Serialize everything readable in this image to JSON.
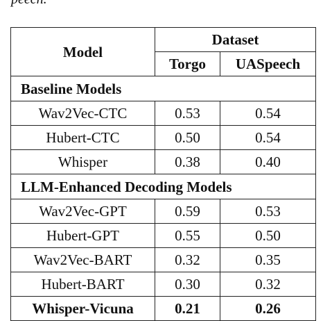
{
  "caption_fragment": "peech.",
  "table": {
    "header": {
      "model": "Model",
      "dataset": "Dataset",
      "columns": [
        "Torgo",
        "UASpeech"
      ]
    },
    "sections": [
      {
        "title": "Baseline Models",
        "rows": [
          [
            "Wav2Vec-CTC",
            "0.53",
            "0.54"
          ],
          [
            "Hubert-CTC",
            "0.50",
            "0.54"
          ],
          [
            "Whisper",
            "0.38",
            "0.40"
          ]
        ]
      },
      {
        "title": "LLM-Enhanced Decoding Models",
        "rows": [
          [
            "Wav2Vec-GPT",
            "0.59",
            "0.53"
          ],
          [
            "Hubert-GPT",
            "0.55",
            "0.50"
          ],
          [
            "Wav2Vec-BART",
            "0.32",
            "0.35"
          ],
          [
            "Hubert-BART",
            "0.30",
            "0.32"
          ],
          [
            "Whisper-Vicuna",
            "0.21",
            "0.26"
          ]
        ]
      }
    ]
  }
}
